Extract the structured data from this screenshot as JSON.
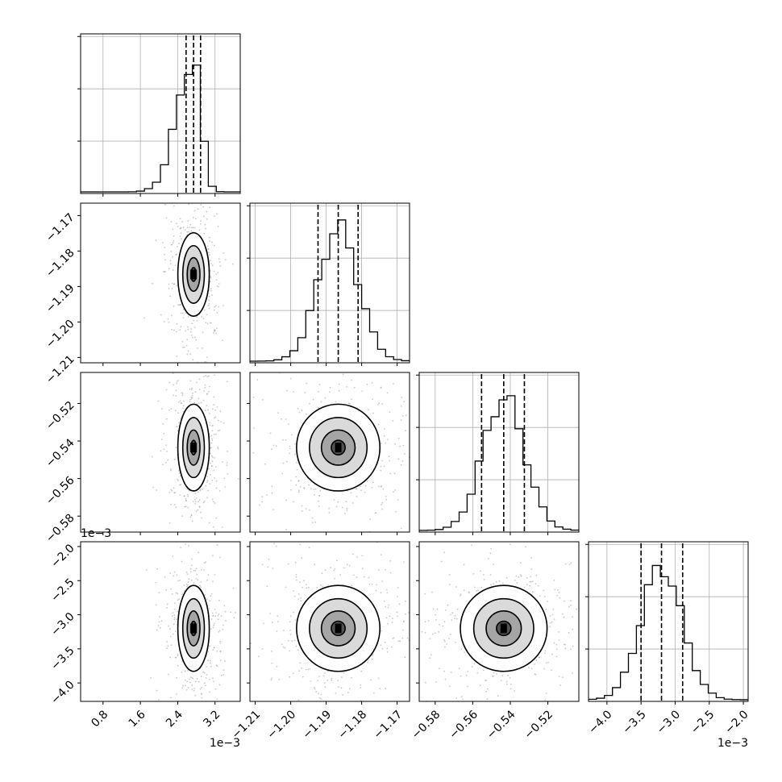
{
  "chart_data": {
    "type": "corner",
    "parameters": [
      {
        "ticks": [
          0.8,
          1.6,
          2.4,
          3.2
        ],
        "tick_labels": [
          "0.8",
          "1.6",
          "2.4",
          "3.2"
        ],
        "range": [
          0.32,
          3.74
        ],
        "offset_text": "1e−3",
        "quantiles": [
          2.58,
          2.74,
          2.89
        ],
        "peak": 2.74,
        "sigma": 0.16,
        "diag_ticks": 3
      },
      {
        "ticks": [
          -1.21,
          -1.2,
          -1.19,
          -1.18,
          -1.17
        ],
        "tick_labels": [
          "−1.21",
          "−1.20",
          "−1.19",
          "−1.18",
          "−1.17"
        ],
        "range": [
          -1.2115,
          -1.1665
        ],
        "offset_text": "",
        "quantiles": [
          -1.1923,
          -1.1866,
          -1.181
        ],
        "peak": -1.1866,
        "sigma": 0.0056,
        "diag_ticks": 3
      },
      {
        "ticks": [
          -0.58,
          -0.56,
          -0.54,
          -0.52
        ],
        "tick_labels": [
          "−0.58",
          "−0.56",
          "−0.54",
          "−0.52"
        ],
        "range": [
          -0.5885,
          -0.5035
        ],
        "offset_text": "",
        "quantiles": [
          -0.5553,
          -0.5435,
          -0.5325
        ],
        "peak": -0.5435,
        "sigma": 0.011,
        "diag_ticks": 3
      },
      {
        "ticks": [
          -4.0,
          -3.5,
          -3.0,
          -2.5,
          -2.0
        ],
        "tick_labels": [
          "−4.0",
          "−3.5",
          "−3.0",
          "−2.5",
          "−2.0"
        ],
        "range": [
          -4.27,
          -1.93
        ],
        "offset_text": "1e−3",
        "quantiles": [
          -3.5,
          -3.2,
          -2.89
        ],
        "peak": -3.2,
        "sigma": 0.3,
        "diag_ticks": 3
      }
    ],
    "grid": true
  }
}
